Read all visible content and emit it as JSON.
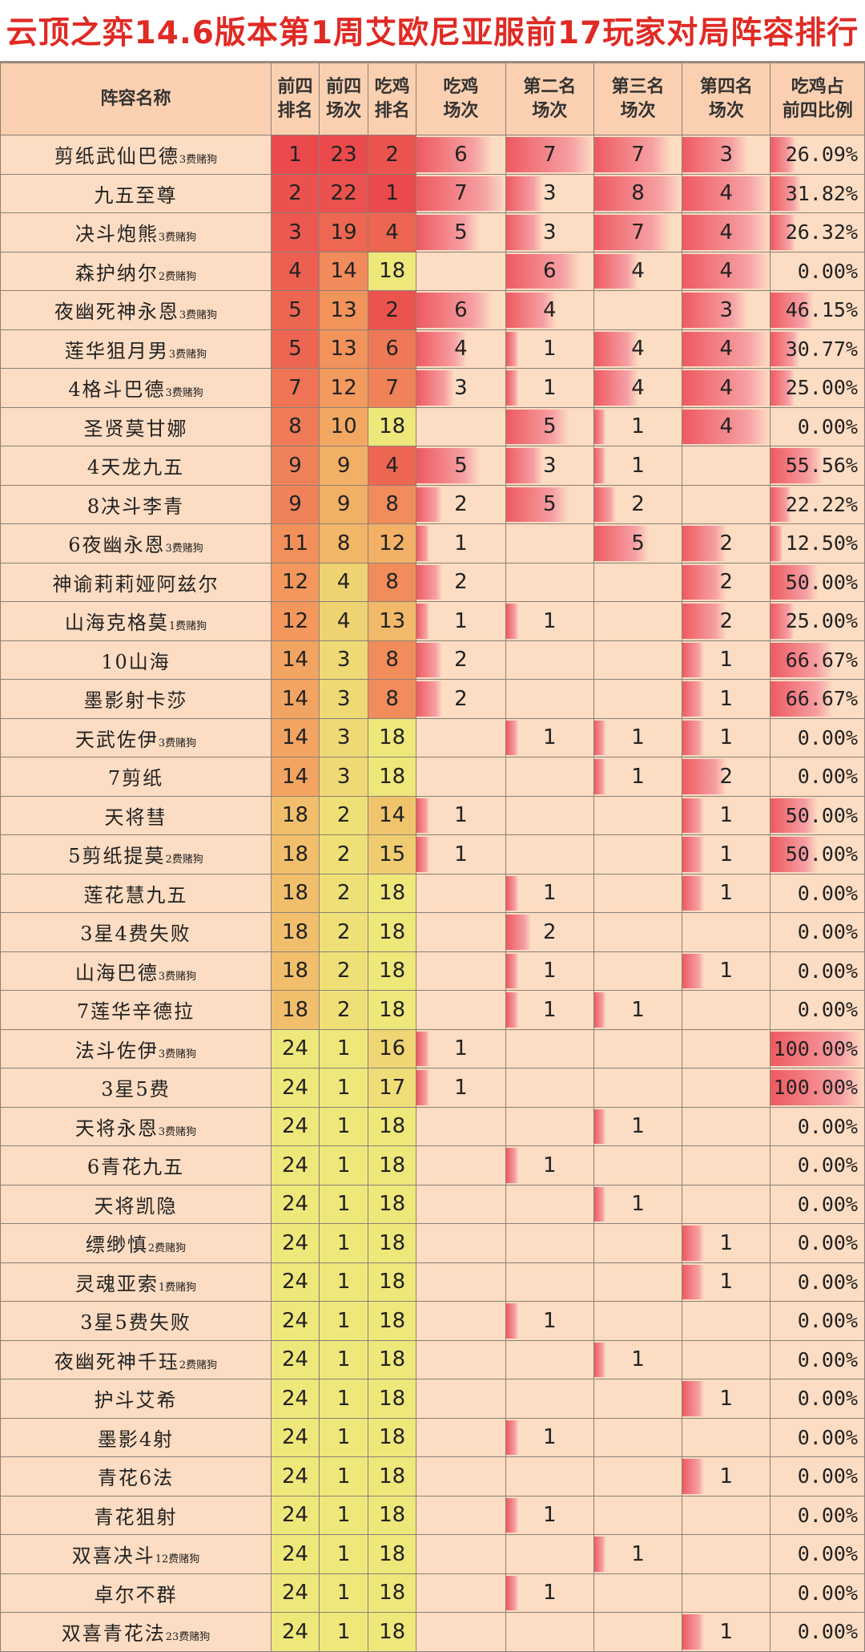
{
  "title": "云顶之弈14.6版本第1周艾欧尼亚服前17玩家对局阵容排行",
  "headers": [
    "阵容名称",
    "前四\n排名",
    "前四\n场次",
    "吃鸡\n排名",
    "吃鸡\n场次",
    "第二名\n场次",
    "第三名\n场次",
    "第四名\n场次",
    "吃鸡占\n前四比例"
  ],
  "colors": {
    "title": "#e02a24",
    "rank_high": "#ea4a4c",
    "rank_mid": "#f39a5e",
    "rank_low": "#eee77a",
    "bar": "#ee5a60",
    "cell_bg": "#fcdcc2"
  },
  "rows": [
    {
      "name": "剪纸武仙巴德",
      "sub": "3费赌狗",
      "top4_rank": "1",
      "top4_games": "23",
      "win_rank": "2",
      "wins": "6",
      "second": "7",
      "third": "7",
      "fourth": "3",
      "win_ratio": "26.09%"
    },
    {
      "name": "九五至尊",
      "sub": "",
      "top4_rank": "2",
      "top4_games": "22",
      "win_rank": "1",
      "wins": "7",
      "second": "3",
      "third": "8",
      "fourth": "4",
      "win_ratio": "31.82%"
    },
    {
      "name": "决斗炮熊",
      "sub": "3费赌狗",
      "top4_rank": "3",
      "top4_games": "19",
      "win_rank": "4",
      "wins": "5",
      "second": "3",
      "third": "7",
      "fourth": "4",
      "win_ratio": "26.32%"
    },
    {
      "name": "森护纳尔",
      "sub": "2费赌狗",
      "top4_rank": "4",
      "top4_games": "14",
      "win_rank": "18",
      "wins": "",
      "second": "6",
      "third": "4",
      "fourth": "4",
      "win_ratio": "0.00%"
    },
    {
      "name": "夜幽死神永恩",
      "sub": "3费赌狗",
      "top4_rank": "5",
      "top4_games": "13",
      "win_rank": "2",
      "wins": "6",
      "second": "4",
      "third": "",
      "fourth": "3",
      "win_ratio": "46.15%"
    },
    {
      "name": "莲华狙月男",
      "sub": "3费赌狗",
      "top4_rank": "5",
      "top4_games": "13",
      "win_rank": "6",
      "wins": "4",
      "second": "1",
      "third": "4",
      "fourth": "4",
      "win_ratio": "30.77%"
    },
    {
      "name": "4格斗巴德",
      "sub": "3费赌狗",
      "top4_rank": "7",
      "top4_games": "12",
      "win_rank": "7",
      "wins": "3",
      "second": "1",
      "third": "4",
      "fourth": "4",
      "win_ratio": "25.00%"
    },
    {
      "name": "圣贤莫甘娜",
      "sub": "",
      "top4_rank": "8",
      "top4_games": "10",
      "win_rank": "18",
      "wins": "",
      "second": "5",
      "third": "1",
      "fourth": "4",
      "win_ratio": "0.00%"
    },
    {
      "name": "4天龙九五",
      "sub": "",
      "top4_rank": "9",
      "top4_games": "9",
      "win_rank": "4",
      "wins": "5",
      "second": "3",
      "third": "1",
      "fourth": "",
      "win_ratio": "55.56%"
    },
    {
      "name": "8决斗李青",
      "sub": "",
      "top4_rank": "9",
      "top4_games": "9",
      "win_rank": "8",
      "wins": "2",
      "second": "5",
      "third": "2",
      "fourth": "",
      "win_ratio": "22.22%"
    },
    {
      "name": "6夜幽永恩",
      "sub": "3费赌狗",
      "top4_rank": "11",
      "top4_games": "8",
      "win_rank": "12",
      "wins": "1",
      "second": "",
      "third": "5",
      "fourth": "2",
      "win_ratio": "12.50%"
    },
    {
      "name": "神谕莉莉娅阿兹尔",
      "sub": "",
      "top4_rank": "12",
      "top4_games": "4",
      "win_rank": "8",
      "wins": "2",
      "second": "",
      "third": "",
      "fourth": "2",
      "win_ratio": "50.00%"
    },
    {
      "name": "山海克格莫",
      "sub": "1费赌狗",
      "top4_rank": "12",
      "top4_games": "4",
      "win_rank": "13",
      "wins": "1",
      "second": "1",
      "third": "",
      "fourth": "2",
      "win_ratio": "25.00%"
    },
    {
      "name": "10山海",
      "sub": "",
      "top4_rank": "14",
      "top4_games": "3",
      "win_rank": "8",
      "wins": "2",
      "second": "",
      "third": "",
      "fourth": "1",
      "win_ratio": "66.67%"
    },
    {
      "name": "墨影射卡莎",
      "sub": "",
      "top4_rank": "14",
      "top4_games": "3",
      "win_rank": "8",
      "wins": "2",
      "second": "",
      "third": "",
      "fourth": "1",
      "win_ratio": "66.67%"
    },
    {
      "name": "天武佐伊",
      "sub": "3费赌狗",
      "top4_rank": "14",
      "top4_games": "3",
      "win_rank": "18",
      "wins": "",
      "second": "1",
      "third": "1",
      "fourth": "1",
      "win_ratio": "0.00%"
    },
    {
      "name": "7剪纸",
      "sub": "",
      "top4_rank": "14",
      "top4_games": "3",
      "win_rank": "18",
      "wins": "",
      "second": "",
      "third": "1",
      "fourth": "2",
      "win_ratio": "0.00%"
    },
    {
      "name": "天将彗",
      "sub": "",
      "top4_rank": "18",
      "top4_games": "2",
      "win_rank": "14",
      "wins": "1",
      "second": "",
      "third": "",
      "fourth": "1",
      "win_ratio": "50.00%"
    },
    {
      "name": "5剪纸提莫",
      "sub": "2费赌狗",
      "top4_rank": "18",
      "top4_games": "2",
      "win_rank": "15",
      "wins": "1",
      "second": "",
      "third": "",
      "fourth": "1",
      "win_ratio": "50.00%"
    },
    {
      "name": "莲花慧九五",
      "sub": "",
      "top4_rank": "18",
      "top4_games": "2",
      "win_rank": "18",
      "wins": "",
      "second": "1",
      "third": "",
      "fourth": "1",
      "win_ratio": "0.00%"
    },
    {
      "name": "3星4费失败",
      "sub": "",
      "top4_rank": "18",
      "top4_games": "2",
      "win_rank": "18",
      "wins": "",
      "second": "2",
      "third": "",
      "fourth": "",
      "win_ratio": "0.00%"
    },
    {
      "name": "山海巴德",
      "sub": "3费赌狗",
      "top4_rank": "18",
      "top4_games": "2",
      "win_rank": "18",
      "wins": "",
      "second": "1",
      "third": "",
      "fourth": "1",
      "win_ratio": "0.00%"
    },
    {
      "name": "7莲华辛德拉",
      "sub": "",
      "top4_rank": "18",
      "top4_games": "2",
      "win_rank": "18",
      "wins": "",
      "second": "1",
      "third": "1",
      "fourth": "",
      "win_ratio": "0.00%"
    },
    {
      "name": "法斗佐伊",
      "sub": "3费赌狗",
      "top4_rank": "24",
      "top4_games": "1",
      "win_rank": "16",
      "wins": "1",
      "second": "",
      "third": "",
      "fourth": "",
      "win_ratio": "100.00%"
    },
    {
      "name": "3星5费",
      "sub": "",
      "top4_rank": "24",
      "top4_games": "1",
      "win_rank": "17",
      "wins": "1",
      "second": "",
      "third": "",
      "fourth": "",
      "win_ratio": "100.00%"
    },
    {
      "name": "天将永恩",
      "sub": "3费赌狗",
      "top4_rank": "24",
      "top4_games": "1",
      "win_rank": "18",
      "wins": "",
      "second": "",
      "third": "1",
      "fourth": "",
      "win_ratio": "0.00%"
    },
    {
      "name": "6青花九五",
      "sub": "",
      "top4_rank": "24",
      "top4_games": "1",
      "win_rank": "18",
      "wins": "",
      "second": "1",
      "third": "",
      "fourth": "",
      "win_ratio": "0.00%"
    },
    {
      "name": "天将凯隐",
      "sub": "",
      "top4_rank": "24",
      "top4_games": "1",
      "win_rank": "18",
      "wins": "",
      "second": "",
      "third": "1",
      "fourth": "",
      "win_ratio": "0.00%"
    },
    {
      "name": "缥缈慎",
      "sub": "2费赌狗",
      "top4_rank": "24",
      "top4_games": "1",
      "win_rank": "18",
      "wins": "",
      "second": "",
      "third": "",
      "fourth": "1",
      "win_ratio": "0.00%"
    },
    {
      "name": "灵魂亚索",
      "sub": "1费赌狗",
      "top4_rank": "24",
      "top4_games": "1",
      "win_rank": "18",
      "wins": "",
      "second": "",
      "third": "",
      "fourth": "1",
      "win_ratio": "0.00%"
    },
    {
      "name": "3星5费失败",
      "sub": "",
      "top4_rank": "24",
      "top4_games": "1",
      "win_rank": "18",
      "wins": "",
      "second": "1",
      "third": "",
      "fourth": "",
      "win_ratio": "0.00%"
    },
    {
      "name": "夜幽死神千珏",
      "sub": "2费赌狗",
      "top4_rank": "24",
      "top4_games": "1",
      "win_rank": "18",
      "wins": "",
      "second": "",
      "third": "1",
      "fourth": "",
      "win_ratio": "0.00%"
    },
    {
      "name": "护斗艾希",
      "sub": "",
      "top4_rank": "24",
      "top4_games": "1",
      "win_rank": "18",
      "wins": "",
      "second": "",
      "third": "",
      "fourth": "1",
      "win_ratio": "0.00%"
    },
    {
      "name": "墨影4射",
      "sub": "",
      "top4_rank": "24",
      "top4_games": "1",
      "win_rank": "18",
      "wins": "",
      "second": "1",
      "third": "",
      "fourth": "",
      "win_ratio": "0.00%"
    },
    {
      "name": "青花6法",
      "sub": "",
      "top4_rank": "24",
      "top4_games": "1",
      "win_rank": "18",
      "wins": "",
      "second": "",
      "third": "",
      "fourth": "1",
      "win_ratio": "0.00%"
    },
    {
      "name": "青花狙射",
      "sub": "",
      "top4_rank": "24",
      "top4_games": "1",
      "win_rank": "18",
      "wins": "",
      "second": "1",
      "third": "",
      "fourth": "",
      "win_ratio": "0.00%"
    },
    {
      "name": "双喜决斗",
      "sub": "12费赌狗",
      "top4_rank": "24",
      "top4_games": "1",
      "win_rank": "18",
      "wins": "",
      "second": "",
      "third": "1",
      "fourth": "",
      "win_ratio": "0.00%"
    },
    {
      "name": "卓尔不群",
      "sub": "",
      "top4_rank": "24",
      "top4_games": "1",
      "win_rank": "18",
      "wins": "",
      "second": "1",
      "third": "",
      "fourth": "",
      "win_ratio": "0.00%"
    },
    {
      "name": "双喜青花法",
      "sub": "23费赌狗",
      "top4_rank": "24",
      "top4_games": "1",
      "win_rank": "18",
      "wins": "",
      "second": "",
      "third": "",
      "fourth": "1",
      "win_ratio": "0.00%"
    }
  ]
}
